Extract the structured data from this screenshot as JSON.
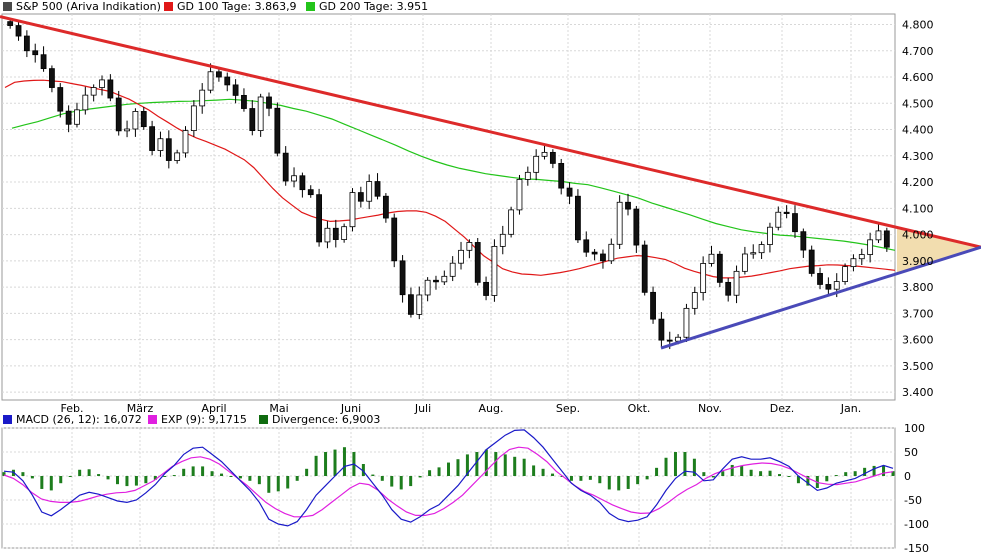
{
  "legend_top": [
    {
      "label": "S&P 500 (Ariva Indikation)",
      "color": "#4a4a4a"
    },
    {
      "label": "GD 100 Tage: 3.863,9",
      "color": "#e01818"
    },
    {
      "label": "GD 200 Tage: 3.951",
      "color": "#23c41a"
    }
  ],
  "legend_bottom": [
    {
      "label": "MACD (26, 12): 16,072",
      "color": "#1a1ac8"
    },
    {
      "label": "EXP (9): 9,1715",
      "color": "#e020e0"
    },
    {
      "label": "Divergence: 6,9003",
      "color": "#0f6b0f"
    }
  ],
  "chart_data": [
    {
      "type": "candlestick",
      "name": "S&P 500 (Ariva Indikation)",
      "x_tick_labels": [
        "Feb.",
        "März",
        "April",
        "Mai",
        "Juni",
        "Juli",
        "Aug.",
        "Sep.",
        "Okt.",
        "Nov.",
        "Dez.",
        "Jan."
      ],
      "y_tick_labels": [
        "3.400",
        "3.500",
        "3.600",
        "3.700",
        "3.800",
        "3.900",
        "4.000",
        "4.100",
        "4.200",
        "4.300",
        "4.400",
        "4.500",
        "4.600",
        "4.700",
        "4.800"
      ],
      "ylim": [
        3370,
        4840
      ],
      "grid": true,
      "legend_position": "top-left",
      "close": [
        4796,
        4756,
        4700,
        4685,
        4632,
        4560,
        4470,
        4420,
        4475,
        4531,
        4560,
        4589,
        4520,
        4395,
        4402,
        4469,
        4411,
        4320,
        4365,
        4282,
        4311,
        4396,
        4490,
        4550,
        4620,
        4600,
        4570,
        4530,
        4480,
        4396,
        4524,
        4481,
        4310,
        4204,
        4224,
        4171,
        4152,
        3972,
        4024,
        3981,
        4030,
        4160,
        4127,
        4202,
        4146,
        4063,
        3900,
        3771,
        3696,
        3770,
        3826,
        3820,
        3841,
        3891,
        3940,
        3970,
        3818,
        3768,
        3955,
        4001,
        4094,
        4210,
        4237,
        4298,
        4313,
        4271,
        4177,
        4146,
        3980,
        3933,
        3926,
        3900,
        3963,
        4123,
        4097,
        3960,
        3780,
        3678,
        3598,
        3594,
        3609,
        3719,
        3779,
        3890,
        3925,
        3818,
        3769,
        3860,
        3926,
        3931,
        3962,
        4028,
        4085,
        4080,
        4011,
        3941,
        3852,
        3810,
        3792,
        3821,
        3878,
        3908,
        3924,
        3980,
        4014,
        3952
      ],
      "ma_100": [
        4560,
        4580,
        4585,
        4587,
        4588,
        4585,
        4582,
        4575,
        4568,
        4560,
        4552,
        4545,
        4530,
        4515,
        4495,
        4475,
        4450,
        4428,
        4405,
        4385,
        4368,
        4355,
        4340,
        4325,
        4305,
        4285,
        4255,
        4215,
        4175,
        4140,
        4112,
        4085,
        4070,
        4058,
        4050,
        4052,
        4055,
        4062,
        4068,
        4074,
        4082,
        4088,
        4090,
        4090,
        4085,
        4070,
        4050,
        4020,
        3990,
        3955,
        3920,
        3895,
        3870,
        3858,
        3850,
        3848,
        3845,
        3850,
        3855,
        3862,
        3870,
        3880,
        3890,
        3900,
        3910,
        3915,
        3920,
        3918,
        3912,
        3905,
        3890,
        3872,
        3860,
        3850,
        3840,
        3835,
        3835,
        3838,
        3842,
        3848,
        3855,
        3862,
        3870,
        3875,
        3880,
        3882,
        3885,
        3884,
        3882,
        3880,
        3876,
        3872,
        3868,
        3864
      ],
      "ma_200": [
        4405,
        4418,
        4430,
        4445,
        4460,
        4470,
        4478,
        4484,
        4490,
        4496,
        4500,
        4503,
        4505,
        4507,
        4508,
        4510,
        4512,
        4515,
        4512,
        4508,
        4500,
        4492,
        4480,
        4470,
        4455,
        4440,
        4420,
        4400,
        4380,
        4360,
        4340,
        4318,
        4298,
        4280,
        4265,
        4252,
        4242,
        4232,
        4225,
        4218,
        4212,
        4210,
        4206,
        4202,
        4195,
        4190,
        4178,
        4165,
        4152,
        4138,
        4120,
        4105,
        4090,
        4075,
        4058,
        4042,
        4030,
        4018,
        4010,
        4004,
        3998,
        3995,
        3990,
        3985,
        3980,
        3975,
        3968,
        3960,
        3950,
        3940
      ],
      "resistance_line": [
        [
          0,
          4830
        ],
        [
          981,
          3952
        ]
      ],
      "support_line": [
        [
          661,
          3568
        ],
        [
          981,
          3952
        ]
      ]
    },
    {
      "type": "bar+line",
      "name": "MACD",
      "y_tick_labels": [
        "100",
        "50",
        "0",
        "-50",
        "-100",
        "-150"
      ],
      "ylim": [
        -150,
        100
      ],
      "grid": true,
      "legend_position": "top-left",
      "macd": [
        10,
        8,
        -10,
        -40,
        -75,
        -83,
        -70,
        -55,
        -40,
        -34,
        -38,
        -45,
        -52,
        -55,
        -50,
        -35,
        -18,
        5,
        22,
        45,
        58,
        60,
        45,
        30,
        10,
        -10,
        -30,
        -55,
        -90,
        -100,
        -104,
        -95,
        -70,
        -40,
        -20,
        0,
        20,
        25,
        10,
        -15,
        -40,
        -70,
        -90,
        -96,
        -85,
        -70,
        -60,
        -40,
        -20,
        5,
        30,
        55,
        70,
        85,
        95,
        96,
        80,
        60,
        35,
        10,
        -15,
        -30,
        -40,
        -55,
        -78,
        -90,
        -95,
        -92,
        -85,
        -60,
        -30,
        -5,
        10,
        8,
        -10,
        -8,
        15,
        35,
        40,
        35,
        35,
        38,
        30,
        20,
        0,
        -15,
        -30,
        -25,
        -15,
        -10,
        -5,
        5,
        15,
        22,
        16
      ],
      "exp": [
        2,
        -5,
        -18,
        -35,
        -48,
        -53,
        -55,
        -55,
        -53,
        -48,
        -42,
        -38,
        -35,
        -34,
        -30,
        -20,
        -10,
        5,
        20,
        30,
        38,
        40,
        35,
        25,
        10,
        -5,
        -20,
        -38,
        -55,
        -68,
        -78,
        -85,
        -85,
        -82,
        -70,
        -55,
        -40,
        -25,
        -15,
        -18,
        -30,
        -48,
        -62,
        -75,
        -82,
        -82,
        -78,
        -68,
        -55,
        -40,
        -20,
        0,
        20,
        40,
        55,
        60,
        58,
        45,
        30,
        10,
        -5,
        -20,
        -32,
        -40,
        -50,
        -60,
        -68,
        -75,
        -78,
        -77,
        -68,
        -55,
        -40,
        -28,
        -18,
        -5,
        5,
        12,
        18,
        22,
        25,
        27,
        26,
        22,
        15,
        5,
        -5,
        -14,
        -17,
        -18,
        -15,
        -12,
        -6,
        0,
        6,
        9
      ]
    }
  ]
}
